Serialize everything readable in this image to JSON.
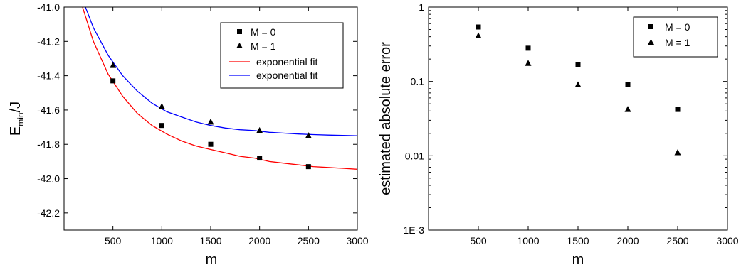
{
  "chart_data": [
    {
      "type": "scatter",
      "title": "",
      "xlabel": "m",
      "ylabel_main": "E",
      "ylabel_sub": "min",
      "ylabel_suffix": "/J",
      "xlim": [
        0,
        3000
      ],
      "ylim": [
        -42.3,
        -41.0
      ],
      "x_ticks": [
        500,
        1000,
        1500,
        2000,
        2500,
        3000
      ],
      "x_tick_labels": [
        "500",
        "1000",
        "1500",
        "2000",
        "2500",
        "3000"
      ],
      "y_ticks": [
        -41.0,
        -41.2,
        -41.4,
        -41.6,
        -41.8,
        -42.0,
        -42.2
      ],
      "y_tick_labels": [
        "-41.0",
        "-41.2",
        "-41.4",
        "-41.6",
        "-41.8",
        "-42.0",
        "-42.2"
      ],
      "grid": false,
      "legend_position": "top-right",
      "series": [
        {
          "name": "M = 0",
          "marker": "square",
          "color": "#000000",
          "x": [
            500,
            1000,
            1500,
            2000,
            2500
          ],
          "y": [
            -41.43,
            -41.69,
            -41.8,
            -41.88,
            -41.93
          ]
        },
        {
          "name": "M = 1",
          "marker": "triangle",
          "color": "#000000",
          "x": [
            500,
            1000,
            1500,
            2000,
            2500
          ],
          "y": [
            -41.34,
            -41.58,
            -41.67,
            -41.72,
            -41.75
          ]
        },
        {
          "name": "exponential fit",
          "kind": "line",
          "color": "#ff0000",
          "x": [
            0,
            150,
            300,
            450,
            600,
            750,
            900,
            1050,
            1200,
            1350,
            1500,
            1650,
            1800,
            1950,
            2100,
            2250,
            2400,
            2550,
            2700,
            2850,
            3000
          ],
          "y": [
            -40.5,
            -40.93,
            -41.2,
            -41.39,
            -41.52,
            -41.62,
            -41.69,
            -41.74,
            -41.78,
            -41.81,
            -41.83,
            -41.85,
            -41.87,
            -41.88,
            -41.9,
            -41.91,
            -41.92,
            -41.93,
            -41.935,
            -41.94,
            -41.945
          ]
        },
        {
          "name": "exponential fit",
          "kind": "line",
          "color": "#0000ff",
          "x": [
            0,
            150,
            300,
            450,
            600,
            750,
            900,
            1050,
            1200,
            1350,
            1500,
            1650,
            1800,
            1950,
            2100,
            2250,
            2400,
            2550,
            2700,
            2850,
            3000
          ],
          "y": [
            -40.55,
            -40.9,
            -41.12,
            -41.28,
            -41.4,
            -41.49,
            -41.56,
            -41.61,
            -41.64,
            -41.67,
            -41.69,
            -41.705,
            -41.715,
            -41.72,
            -41.73,
            -41.735,
            -41.74,
            -41.743,
            -41.746,
            -41.748,
            -41.75
          ]
        }
      ]
    },
    {
      "type": "scatter",
      "title": "",
      "xlabel": "m",
      "ylabel": "estimated absolute error",
      "xlim": [
        0,
        3000
      ],
      "ylim": [
        0.001,
        1
      ],
      "yscale": "log",
      "x_ticks": [
        500,
        1000,
        1500,
        2000,
        2500,
        3000
      ],
      "x_tick_labels": [
        "500",
        "1000",
        "1500",
        "2000",
        "2500",
        "3000"
      ],
      "y_ticks": [
        1,
        0.1,
        0.01,
        0.001
      ],
      "y_tick_labels": [
        "1",
        "0.1",
        "0.01",
        "1E-3"
      ],
      "grid": false,
      "legend_position": "top-right",
      "series": [
        {
          "name": "M = 0",
          "marker": "square",
          "color": "#000000",
          "x": [
            500,
            1000,
            1500,
            2000,
            2500
          ],
          "y": [
            0.54,
            0.28,
            0.17,
            0.09,
            0.042
          ]
        },
        {
          "name": "M = 1",
          "marker": "triangle",
          "color": "#000000",
          "x": [
            500,
            1000,
            1500,
            2000,
            2500
          ],
          "y": [
            0.41,
            0.175,
            0.09,
            0.042,
            0.011
          ]
        }
      ]
    }
  ]
}
